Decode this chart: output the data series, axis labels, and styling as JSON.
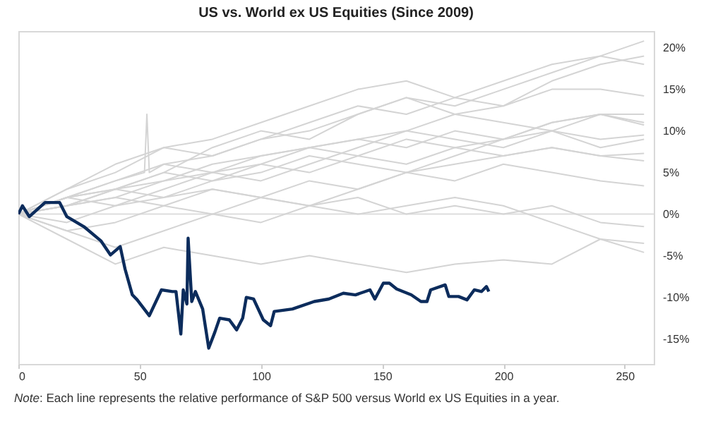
{
  "chart_data": {
    "type": "line",
    "title": "US vs. World ex US Equities (Since 2009)",
    "annotations": [
      "Note: Each line represents the relative performance of S&P 500 versus World ex US Equities in a year."
    ],
    "xlim": [
      0,
      262
    ],
    "xticks": [
      0,
      50,
      100,
      150,
      200,
      250
    ],
    "ylim": [
      -18,
      22
    ],
    "yticks": [
      {
        "value": -15,
        "label": "-15%"
      },
      {
        "value": -10,
        "label": "-10%"
      },
      {
        "value": -5,
        "label": "-5%"
      },
      {
        "value": 0,
        "label": "0%"
      },
      {
        "value": 5,
        "label": "5%"
      },
      {
        "value": 10,
        "label": "10%"
      },
      {
        "value": 15,
        "label": "15%"
      },
      {
        "value": 20,
        "label": "20%"
      }
    ],
    "ref_lines": [
      {
        "axis": "y",
        "value": 0,
        "color": "#dddddd"
      }
    ],
    "series": [
      {
        "color": "#d4d4d4",
        "x": [
          0,
          20,
          40,
          60,
          80,
          100,
          120,
          140,
          160,
          180,
          200,
          220,
          240,
          258
        ],
        "values": [
          0,
          2,
          4,
          6,
          7,
          9,
          11,
          13,
          12,
          14,
          16,
          18,
          19,
          20.8
        ]
      },
      {
        "color": "#d4d4d4",
        "x": [
          0,
          20,
          40,
          60,
          80,
          100,
          120,
          140,
          160,
          180,
          200,
          220,
          240,
          258
        ],
        "values": [
          0,
          1,
          3,
          5,
          8,
          10,
          9,
          12,
          14,
          13,
          15,
          17,
          19,
          18
        ]
      },
      {
        "color": "#d4d4d4",
        "x": [
          0,
          20,
          40,
          60,
          80,
          100,
          120,
          140,
          160,
          180,
          200,
          220,
          240,
          258
        ],
        "values": [
          0,
          3,
          5,
          8,
          9,
          11,
          13,
          15,
          16,
          14,
          13,
          15,
          15,
          14.2
        ]
      },
      {
        "color": "#d4d4d4",
        "x": [
          0,
          20,
          40,
          60,
          80,
          100,
          120,
          140,
          160,
          180,
          200,
          220,
          240,
          258
        ],
        "values": [
          0,
          2,
          3,
          4,
          6,
          7,
          8,
          9,
          8,
          10,
          9,
          11,
          12,
          10.7
        ]
      },
      {
        "color": "#d4d4d4",
        "x": [
          0,
          20,
          40,
          60,
          80,
          100,
          120,
          140,
          160,
          180,
          200,
          220,
          240,
          258
        ],
        "values": [
          0,
          1,
          2,
          4,
          5,
          6,
          8,
          7,
          9,
          8,
          9,
          10,
          8,
          9
        ]
      },
      {
        "color": "#d4d4d4",
        "x": [
          0,
          20,
          40,
          60,
          80,
          100,
          120,
          140,
          160,
          180,
          200,
          220,
          240,
          258
        ],
        "values": [
          0,
          2,
          3,
          5,
          4,
          6,
          5,
          7,
          6,
          8,
          7,
          8,
          7,
          7.3
        ]
      },
      {
        "color": "#d4d4d4",
        "x": [
          0,
          20,
          40,
          60,
          80,
          100,
          120,
          140,
          160,
          180,
          200,
          220,
          240,
          258
        ],
        "values": [
          0,
          1,
          3,
          2,
          4,
          5,
          7,
          6,
          5,
          6,
          7,
          8,
          7,
          6.4
        ]
      },
      {
        "color": "#d4d4d4",
        "x": [
          0,
          20,
          40,
          60,
          80,
          100,
          120,
          140,
          160,
          180,
          200,
          220,
          240,
          258
        ],
        "values": [
          0,
          -1,
          1,
          2,
          3,
          2,
          4,
          3,
          5,
          4,
          6,
          5,
          4,
          3.4
        ]
      },
      {
        "color": "#d4d4d4",
        "x": [
          0,
          20,
          40,
          60,
          80,
          100,
          120,
          140,
          160,
          180,
          200,
          220,
          240,
          258
        ],
        "values": [
          0,
          1,
          2,
          1,
          3,
          2,
          1,
          2,
          0,
          1,
          0,
          1,
          -1,
          -1.5
        ]
      },
      {
        "color": "#d4d4d4",
        "x": [
          0,
          20,
          40,
          60,
          80,
          100,
          120,
          140,
          160,
          180,
          200,
          220,
          240,
          258
        ],
        "values": [
          0,
          -2,
          -1,
          1,
          0,
          2,
          1,
          0,
          1,
          2,
          1,
          -1,
          -3,
          -4.6
        ]
      },
      {
        "color": "#d4d4d4",
        "x": [
          0,
          20,
          40,
          60,
          80,
          100,
          120,
          140,
          160,
          180,
          200,
          220,
          240,
          258
        ],
        "values": [
          0,
          -3,
          -6,
          -4,
          -5,
          -6,
          -5,
          -6,
          -7,
          -6,
          -5.5,
          -6,
          -3,
          -3.5
        ]
      },
      {
        "color": "#d4d4d4",
        "x": [
          0,
          20,
          40,
          52,
          53,
          54,
          60,
          80,
          100,
          120,
          140,
          160,
          180,
          200,
          220,
          240,
          258
        ],
        "values": [
          0,
          2,
          4,
          5,
          12,
          5,
          6,
          5,
          7,
          8,
          9,
          10,
          9,
          8,
          10,
          12,
          11
        ]
      },
      {
        "color": "#d4d4d4",
        "x": [
          0,
          20,
          40,
          60,
          80,
          100,
          120,
          140,
          160,
          180,
          200,
          220,
          240,
          258
        ],
        "values": [
          0,
          -2,
          -4,
          -2,
          0,
          -1,
          1,
          3,
          5,
          7,
          9,
          11,
          12,
          12
        ]
      },
      {
        "color": "#d4d4d4",
        "x": [
          0,
          20,
          40,
          60,
          80,
          100,
          120,
          140,
          160,
          180,
          200,
          220,
          240,
          258
        ],
        "values": [
          0,
          3,
          6,
          8,
          7,
          9,
          10,
          12,
          14,
          12,
          11,
          10,
          9,
          9.5
        ]
      },
      {
        "color": "#d4d4d4",
        "x": [
          0,
          20,
          40,
          60,
          80,
          100,
          120,
          140,
          160,
          180,
          200,
          220,
          240,
          258
        ],
        "values": [
          0,
          2,
          1,
          3,
          5,
          4,
          6,
          8,
          10,
          12,
          13,
          16,
          18,
          19
        ]
      },
      {
        "color": "#0c2c5c",
        "x": [
          0,
          1.7,
          4.5,
          11,
          17,
          20,
          27,
          34,
          38,
          42,
          44,
          47,
          49,
          54,
          59,
          63.5,
          65,
          67,
          68,
          69.5,
          70,
          71.5,
          73,
          76,
          78.5,
          81,
          83,
          87,
          90,
          92.5,
          94,
          97,
          101,
          104,
          105.5,
          113,
          122,
          128,
          134,
          139,
          145,
          147,
          150.5,
          153,
          156,
          162,
          166,
          168.5,
          170,
          176,
          177.5,
          181.5,
          185,
          188,
          191,
          193,
          194
        ],
        "values": [
          0,
          1,
          -0.3,
          1.4,
          1.4,
          -0.3,
          -1.5,
          -3.2,
          -4.9,
          -3.9,
          -6.6,
          -9.7,
          -10.3,
          -12.2,
          -9.1,
          -9.3,
          -9.3,
          -14.4,
          -9.1,
          -10.8,
          -2.9,
          -10.5,
          -9.3,
          -11.4,
          -16.1,
          -14.2,
          -12.5,
          -12.7,
          -13.9,
          -12.5,
          -10,
          -10.2,
          -12.7,
          -13.4,
          -11.7,
          -11.4,
          -10.5,
          -10.2,
          -9.5,
          -9.7,
          -9.1,
          -10.2,
          -8.3,
          -8.3,
          -9,
          -9.7,
          -10.5,
          -10.5,
          -9.1,
          -8.5,
          -9.9,
          -9.9,
          -10.3,
          -9.1,
          -9.3,
          -8.7,
          -9.3
        ]
      }
    ]
  }
}
